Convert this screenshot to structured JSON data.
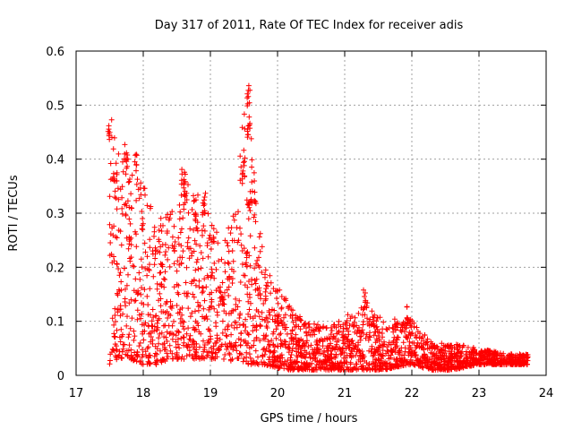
{
  "chart_data": {
    "type": "scatter",
    "title": "Day 317 of 2011, Rate Of TEC Index for receiver adis",
    "xlabel": "GPS time / hours",
    "ylabel": "ROTI / TECUs",
    "xlim": [
      17,
      24
    ],
    "ylim": [
      0,
      0.6
    ],
    "x_ticks": [
      "17",
      "18",
      "19",
      "20",
      "21",
      "22",
      "23",
      "24"
    ],
    "y_ticks": [
      "0",
      "0.1",
      "0.2",
      "0.3",
      "0.4",
      "0.5",
      "0.6"
    ],
    "grid": true,
    "marker": "+",
    "color": "#ff0000",
    "envelope": [
      {
        "x": 17.5,
        "lo": 0.02,
        "hi": 0.47
      },
      {
        "x": 17.65,
        "lo": 0.03,
        "hi": 0.42
      },
      {
        "x": 17.8,
        "lo": 0.03,
        "hi": 0.4
      },
      {
        "x": 18.0,
        "lo": 0.02,
        "hi": 0.36
      },
      {
        "x": 18.2,
        "lo": 0.02,
        "hi": 0.29
      },
      {
        "x": 18.4,
        "lo": 0.03,
        "hi": 0.3
      },
      {
        "x": 18.6,
        "lo": 0.03,
        "hi": 0.37
      },
      {
        "x": 18.9,
        "lo": 0.03,
        "hi": 0.32
      },
      {
        "x": 19.2,
        "lo": 0.03,
        "hi": 0.24
      },
      {
        "x": 19.55,
        "lo": 0.02,
        "hi": 0.52
      },
      {
        "x": 19.8,
        "lo": 0.02,
        "hi": 0.2
      },
      {
        "x": 20.1,
        "lo": 0.01,
        "hi": 0.15
      },
      {
        "x": 20.4,
        "lo": 0.01,
        "hi": 0.1
      },
      {
        "x": 20.8,
        "lo": 0.01,
        "hi": 0.09
      },
      {
        "x": 21.3,
        "lo": 0.01,
        "hi": 0.14
      },
      {
        "x": 21.6,
        "lo": 0.01,
        "hi": 0.1
      },
      {
        "x": 21.95,
        "lo": 0.02,
        "hi": 0.11
      },
      {
        "x": 22.3,
        "lo": 0.01,
        "hi": 0.06
      },
      {
        "x": 22.6,
        "lo": 0.01,
        "hi": 0.06
      },
      {
        "x": 23.0,
        "lo": 0.02,
        "hi": 0.05
      },
      {
        "x": 23.4,
        "lo": 0.02,
        "hi": 0.04
      },
      {
        "x": 23.73,
        "lo": 0.02,
        "hi": 0.04
      }
    ],
    "clusters": [
      {
        "x": 17.5,
        "y": 0.455
      },
      {
        "x": 17.58,
        "y": 0.355
      },
      {
        "x": 17.75,
        "y": 0.41
      },
      {
        "x": 17.88,
        "y": 0.395
      },
      {
        "x": 18.6,
        "y": 0.365
      },
      {
        "x": 18.63,
        "y": 0.33
      },
      {
        "x": 18.9,
        "y": 0.32
      },
      {
        "x": 19.5,
        "y": 0.38
      },
      {
        "x": 19.56,
        "y": 0.45
      },
      {
        "x": 19.57,
        "y": 0.517
      },
      {
        "x": 19.58,
        "y": 0.32
      },
      {
        "x": 21.3,
        "y": 0.14
      },
      {
        "x": 21.95,
        "y": 0.11
      }
    ]
  }
}
